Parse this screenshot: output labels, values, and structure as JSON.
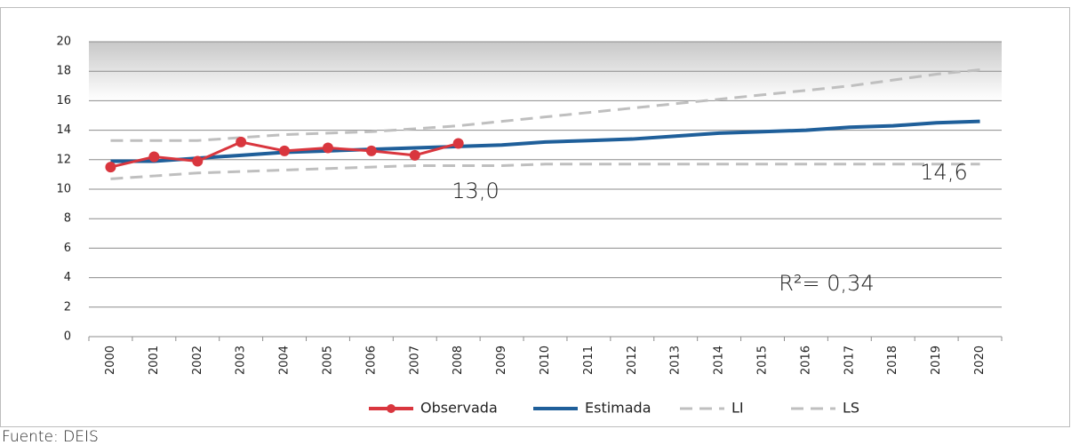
{
  "chart_data": {
    "type": "line",
    "categories": [
      "2000",
      "2001",
      "2002",
      "2003",
      "2004",
      "2005",
      "2006",
      "2007",
      "2008",
      "2009",
      "2010",
      "2011",
      "2012",
      "2013",
      "2014",
      "2015",
      "2016",
      "2017",
      "2018",
      "2019",
      "2020"
    ],
    "series": [
      {
        "name": "Observada",
        "color": "#d9363e",
        "markers": true,
        "values": [
          11.5,
          12.2,
          11.9,
          13.2,
          12.6,
          12.8,
          12.6,
          12.3,
          13.1,
          null,
          null,
          null,
          null,
          null,
          null,
          null,
          null,
          null,
          null,
          null,
          null
        ]
      },
      {
        "name": "Estimada",
        "color": "#1f5f9a",
        "values": [
          11.9,
          11.9,
          12.1,
          12.3,
          12.5,
          12.6,
          12.7,
          12.8,
          12.9,
          13.0,
          13.2,
          13.3,
          13.4,
          13.6,
          13.8,
          13.9,
          14.0,
          14.2,
          14.3,
          14.5,
          14.6
        ]
      },
      {
        "name": "LI",
        "color": "#bfbfbf",
        "dashed": true,
        "values": [
          10.7,
          10.9,
          11.1,
          11.2,
          11.3,
          11.4,
          11.5,
          11.6,
          11.6,
          11.6,
          11.7,
          11.7,
          11.7,
          11.7,
          11.7,
          11.7,
          11.7,
          11.7,
          11.7,
          11.7,
          11.7
        ]
      },
      {
        "name": "LS",
        "color": "#bfbfbf",
        "dashed": true,
        "values": [
          13.3,
          13.3,
          13.3,
          13.5,
          13.7,
          13.8,
          13.9,
          14.1,
          14.3,
          14.6,
          14.9,
          15.2,
          15.5,
          15.8,
          16.1,
          16.4,
          16.7,
          17.0,
          17.4,
          17.8,
          18.1
        ]
      }
    ],
    "annotations": [
      "13,0",
      "14,6",
      "R²= 0,34"
    ],
    "ylim": [
      0,
      20
    ],
    "yticks": [
      0,
      2,
      4,
      6,
      8,
      10,
      12,
      14,
      16,
      18,
      20
    ],
    "grid": true,
    "source": "Fuente: DEIS"
  }
}
